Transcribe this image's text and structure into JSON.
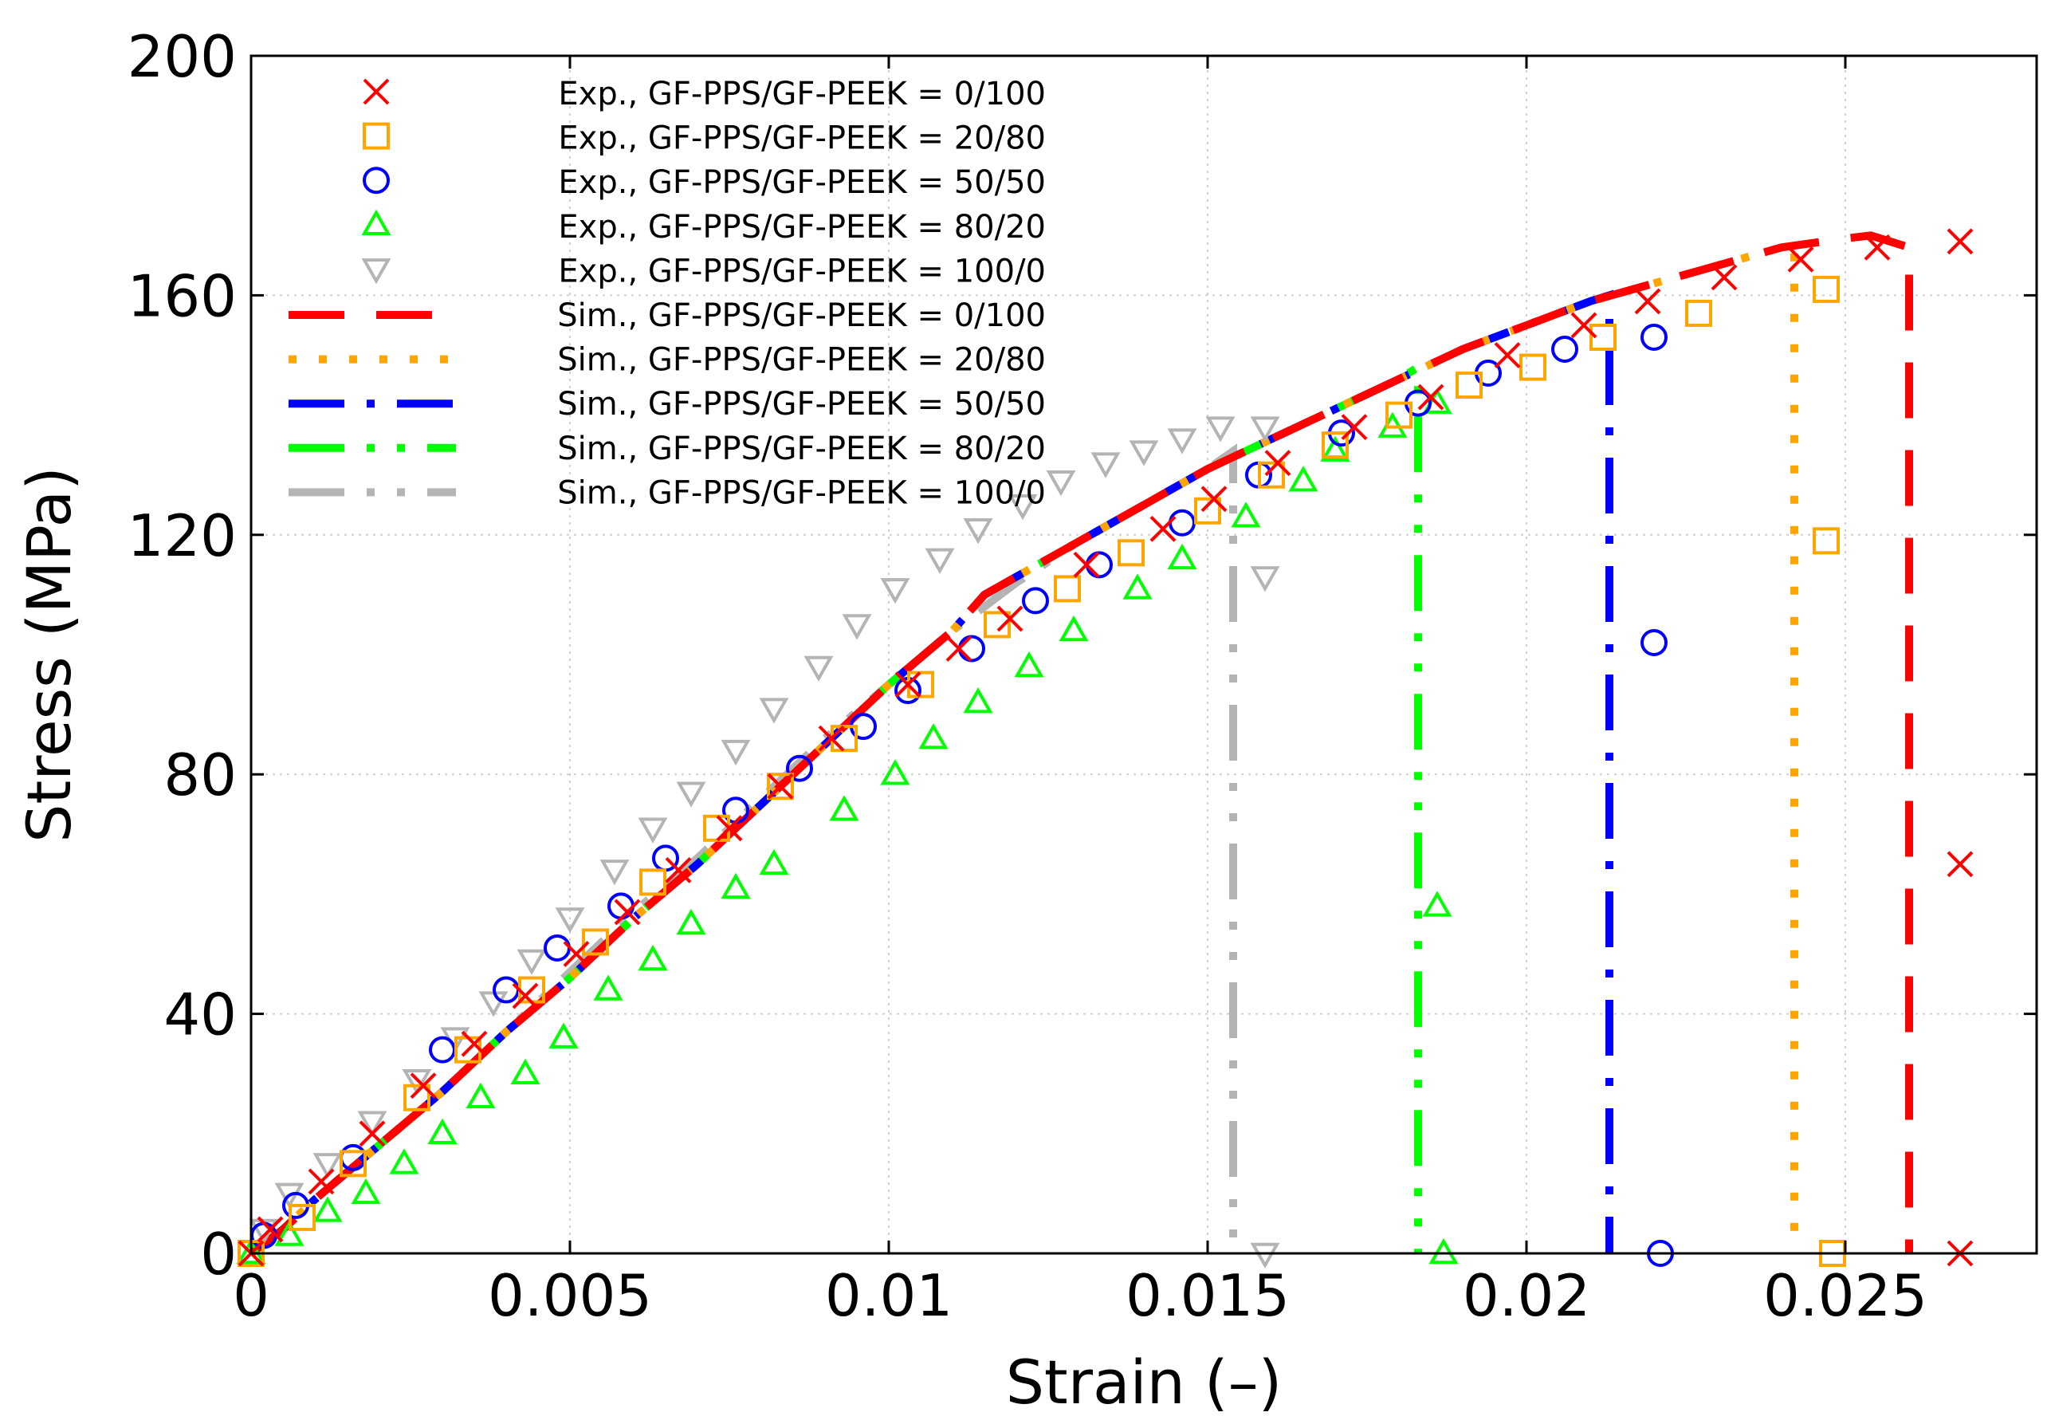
{
  "chart_data": {
    "type": "line",
    "title": "",
    "xlabel": "Strain (–)",
    "ylabel": "Stress (MPa)",
    "xlim": [
      0,
      0.028
    ],
    "ylim": [
      0,
      200
    ],
    "grid": true,
    "legend_position": "top-left",
    "x_ticks": [
      {
        "value": 0,
        "label": "0"
      },
      {
        "value": 0.005,
        "label": "0.005"
      },
      {
        "value": 0.01,
        "label": "0.01"
      },
      {
        "value": 0.015,
        "label": "0.015"
      },
      {
        "value": 0.02,
        "label": "0.02"
      },
      {
        "value": 0.025,
        "label": "0.025"
      }
    ],
    "y_ticks": [
      {
        "value": 0,
        "label": "0"
      },
      {
        "value": 40,
        "label": "40"
      },
      {
        "value": 80,
        "label": "80"
      },
      {
        "value": 120,
        "label": "120"
      },
      {
        "value": 160,
        "label": "160"
      },
      {
        "value": 200,
        "label": "200"
      }
    ],
    "experimental": [
      {
        "name": "Exp., GF-PPS/GF-PEEK = 0/100",
        "marker": "cross",
        "color": "#ff0000",
        "x": [
          0,
          0.0003,
          0.0011,
          0.0019,
          0.0027,
          0.0035,
          0.0043,
          0.0051,
          0.0059,
          0.0067,
          0.0075,
          0.0083,
          0.0091,
          0.0103,
          0.0111,
          0.0119,
          0.0131,
          0.0143,
          0.0151,
          0.0161,
          0.0173,
          0.0185,
          0.0197,
          0.0209,
          0.0219,
          0.0231,
          0.0243,
          0.0255,
          0.0268,
          0.0268,
          0.0268
        ],
        "y": [
          0,
          4,
          12,
          20,
          28,
          35,
          43,
          50,
          57,
          64,
          71,
          78,
          86,
          95,
          101,
          106,
          115,
          121,
          126,
          132,
          138,
          143,
          150,
          155,
          159,
          163,
          166,
          168,
          169,
          65,
          0
        ]
      },
      {
        "name": "Exp., GF-PPS/GF-PEEK = 20/80",
        "marker": "square",
        "color": "#ffa500",
        "x": [
          0,
          0.0008,
          0.0016,
          0.0026,
          0.0034,
          0.0044,
          0.0054,
          0.0063,
          0.0073,
          0.0083,
          0.0093,
          0.0105,
          0.0117,
          0.0128,
          0.0138,
          0.015,
          0.016,
          0.017,
          0.018,
          0.0191,
          0.0201,
          0.0212,
          0.0227,
          0.0247,
          0.0247,
          0.0248
        ],
        "y": [
          0,
          6,
          15,
          26,
          34,
          44,
          52,
          62,
          71,
          78,
          86,
          95,
          105,
          111,
          117,
          124,
          130,
          135,
          140,
          145,
          148,
          153,
          157,
          161,
          119,
          0
        ]
      },
      {
        "name": "Exp., GF-PPS/GF-PEEK = 50/50",
        "marker": "circle",
        "color": "#0000ff",
        "x": [
          0.0002,
          0.0007,
          0.0016,
          0.003,
          0.004,
          0.0048,
          0.0058,
          0.0065,
          0.0076,
          0.0086,
          0.0096,
          0.0103,
          0.0113,
          0.0123,
          0.0133,
          0.0146,
          0.0158,
          0.0171,
          0.0183,
          0.0194,
          0.0206,
          0.022,
          0.022,
          0.0221
        ],
        "y": [
          3,
          8,
          16,
          34,
          44,
          51,
          58,
          66,
          74,
          81,
          88,
          94,
          101,
          109,
          115,
          122,
          130,
          137,
          142,
          147,
          151,
          153,
          102,
          0
        ]
      },
      {
        "name": "Exp., GF-PPS/GF-PEEK = 80/20",
        "marker": "triangle-up",
        "color": "#00ff00",
        "x": [
          0,
          0.0006,
          0.0012,
          0.0018,
          0.0024,
          0.003,
          0.0036,
          0.0043,
          0.0049,
          0.0056,
          0.0063,
          0.0069,
          0.0076,
          0.0082,
          0.0093,
          0.0101,
          0.0107,
          0.0114,
          0.0122,
          0.0129,
          0.0139,
          0.0146,
          0.0156,
          0.0165,
          0.017,
          0.0179,
          0.0186,
          0.0186,
          0.0187
        ],
        "y": [
          0,
          3,
          7,
          10,
          15,
          20,
          26,
          30,
          36,
          44,
          49,
          55,
          61,
          65,
          74,
          80,
          86,
          92,
          98,
          104,
          111,
          116,
          123,
          129,
          134,
          138,
          142,
          58,
          0
        ]
      },
      {
        "name": "Exp., GF-PPS/GF-PEEK = 100/0",
        "marker": "triangle-down",
        "color": "#b4b4b4",
        "x": [
          0.0002,
          0.0006,
          0.0012,
          0.0019,
          0.0026,
          0.0032,
          0.0038,
          0.0044,
          0.005,
          0.0057,
          0.0063,
          0.0069,
          0.0076,
          0.0082,
          0.0089,
          0.0095,
          0.0101,
          0.0108,
          0.0114,
          0.0121,
          0.0127,
          0.0134,
          0.014,
          0.0146,
          0.0152,
          0.0159,
          0.0159,
          0.0159
        ],
        "y": [
          4,
          10,
          15,
          22,
          29,
          36,
          42,
          49,
          56,
          64,
          71,
          77,
          84,
          91,
          98,
          105,
          111,
          116,
          121,
          125,
          129,
          132,
          134,
          136,
          138,
          138,
          113,
          0
        ]
      }
    ],
    "simulated": [
      {
        "name": "Sim., GF-PPS/GF-PEEK = 0/100",
        "style": "dashed",
        "color": "#ff0000",
        "x": [
          0,
          0.0005,
          0.001,
          0.002,
          0.003,
          0.004,
          0.005,
          0.006,
          0.007,
          0.008,
          0.009,
          0.01,
          0.011,
          0.0115,
          0.012,
          0.013,
          0.014,
          0.015,
          0.016,
          0.017,
          0.018,
          0.019,
          0.02,
          0.021,
          0.022,
          0.023,
          0.024,
          0.025,
          0.0254,
          0.026,
          0.026
        ],
        "y": [
          0,
          4,
          9,
          18,
          27,
          37,
          46,
          56,
          65,
          75,
          85,
          95,
          104,
          110,
          113,
          119,
          125,
          131,
          136,
          141,
          146,
          151,
          155,
          159,
          162,
          165,
          168,
          169.5,
          170,
          168,
          0
        ]
      },
      {
        "name": "Sim., GF-PPS/GF-PEEK = 20/80",
        "style": "dotted",
        "color": "#ffa500",
        "x": [
          0,
          0.0005,
          0.001,
          0.002,
          0.003,
          0.004,
          0.005,
          0.006,
          0.007,
          0.008,
          0.009,
          0.01,
          0.011,
          0.0115,
          0.012,
          0.013,
          0.014,
          0.015,
          0.016,
          0.017,
          0.018,
          0.019,
          0.02,
          0.021,
          0.022,
          0.023,
          0.024,
          0.0242,
          0.0242
        ],
        "y": [
          0,
          4,
          9,
          18,
          27,
          37,
          46,
          56,
          65,
          75,
          85,
          95,
          104,
          110,
          113,
          119,
          125,
          131,
          136,
          141,
          146,
          151,
          155,
          159,
          162,
          165,
          168,
          168,
          0
        ]
      },
      {
        "name": "Sim., GF-PPS/GF-PEEK = 50/50",
        "style": "dash-dot",
        "color": "#0000ff",
        "x": [
          0,
          0.0005,
          0.001,
          0.002,
          0.003,
          0.004,
          0.005,
          0.006,
          0.007,
          0.008,
          0.009,
          0.01,
          0.011,
          0.0115,
          0.012,
          0.013,
          0.014,
          0.015,
          0.016,
          0.017,
          0.018,
          0.019,
          0.02,
          0.021,
          0.0213,
          0.0213
        ],
        "y": [
          0,
          4,
          9,
          18,
          27,
          37,
          46,
          56,
          65,
          75,
          85,
          95,
          104,
          110,
          113,
          119,
          125,
          131,
          136,
          141,
          146,
          151,
          155,
          159,
          160,
          0
        ]
      },
      {
        "name": "Sim., GF-PPS/GF-PEEK = 80/20",
        "style": "dash-dot-dot",
        "color": "#00ff00",
        "x": [
          0,
          0.0005,
          0.001,
          0.002,
          0.003,
          0.004,
          0.005,
          0.006,
          0.007,
          0.008,
          0.009,
          0.01,
          0.011,
          0.0115,
          0.012,
          0.013,
          0.014,
          0.015,
          0.016,
          0.017,
          0.018,
          0.0183,
          0.0183
        ],
        "y": [
          0,
          4,
          9,
          18,
          27,
          37,
          46,
          56,
          65,
          75,
          85,
          95,
          104,
          110,
          113,
          119,
          125,
          131,
          136,
          141,
          146,
          148,
          0
        ]
      },
      {
        "name": "Sim., GF-PPS/GF-PEEK = 100/0",
        "style": "dash-dot-dot",
        "color": "#b4b4b4",
        "x": [
          0,
          0.0005,
          0.001,
          0.002,
          0.003,
          0.004,
          0.005,
          0.006,
          0.007,
          0.008,
          0.009,
          0.01,
          0.011,
          0.012,
          0.013,
          0.014,
          0.0145,
          0.015,
          0.0154,
          0.0154
        ],
        "y": [
          0,
          4,
          9,
          18,
          27,
          37,
          47,
          57,
          66,
          76,
          86,
          95,
          104,
          112,
          119,
          125,
          128,
          131,
          134,
          0
        ]
      }
    ]
  }
}
